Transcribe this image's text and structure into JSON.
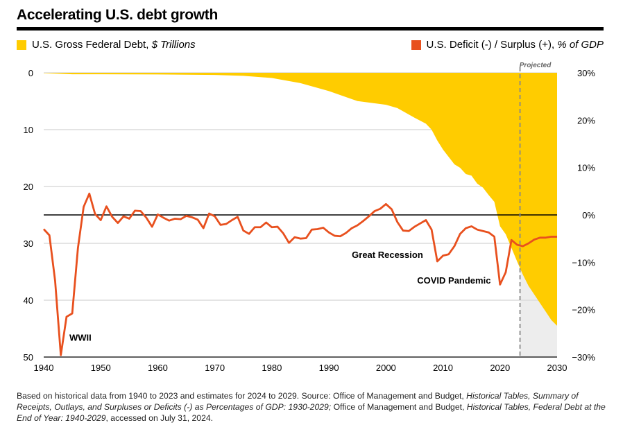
{
  "header": {
    "title": "Accelerating U.S. debt growth"
  },
  "legend": {
    "debt_label": "U.S. Gross Federal Debt,",
    "debt_unit": "$ Trillions",
    "deficit_label": "U.S. Deficit (-) / Surplus (+),",
    "deficit_unit": "% of GDP"
  },
  "colors": {
    "debt": "#FFCC00",
    "deficit": "#E8501E",
    "projected_fill": "#EDEDED",
    "grid": "#C8C8C8"
  },
  "footnote": {
    "part1": "Based on historical data from 1940 to 2023 and estimates for 2024 to 2029. Source: Office of Management and Budget, ",
    "italic1": "Historical Tables, Summary of Receipts, Outlays, and Surpluses or Deficits (-) as Percentages of GDP: 1930-2029;",
    "part2": " Office of Management and Budget, ",
    "italic2": "Historical Tables, Federal Debt at the End of Year: 1940-2029",
    "part3": ", accessed on July 31, 2024."
  },
  "chart_data": {
    "type": "area",
    "x_ticks": [
      "1940",
      "1950",
      "1960",
      "1970",
      "1980",
      "1990",
      "2000",
      "2010",
      "2020",
      "2030"
    ],
    "xlim": [
      1940,
      2030
    ],
    "left_axis": {
      "ticks": [
        "0",
        "10",
        "20",
        "30",
        "40",
        "50"
      ],
      "ylim": [
        0,
        50
      ],
      "inverted": true
    },
    "right_axis": {
      "ticks": [
        "30%",
        "20%",
        "10%",
        "0%",
        "-10%",
        "-20%",
        "-30%"
      ],
      "ylim": [
        -30,
        30
      ]
    },
    "projected_label": "Projected",
    "projected_start": 2023.5,
    "annotations": [
      {
        "text": "WWII",
        "x": 1944.5,
        "y": -26
      },
      {
        "text": "Great Recession",
        "x": 2006.5,
        "y": -8.5
      },
      {
        "text": "COVID Pandemic",
        "x": 2018.5,
        "y": -13.9
      }
    ],
    "series": [
      {
        "name": "U.S. Gross Federal Debt, $ Trillions",
        "axis": "left",
        "x": [
          1940,
          1945,
          1950,
          1960,
          1970,
          1975,
          1980,
          1985,
          1990,
          1995,
          2000,
          2002,
          2005,
          2007,
          2008,
          2009,
          2010,
          2011,
          2012,
          2013,
          2014,
          2015,
          2016,
          2017,
          2018,
          2019,
          2020,
          2021,
          2022,
          2023,
          2024,
          2025,
          2026,
          2027,
          2028,
          2029,
          2030
        ],
        "values": [
          0.05,
          0.26,
          0.26,
          0.29,
          0.38,
          0.54,
          0.91,
          1.82,
          3.21,
          4.97,
          5.63,
          6.2,
          7.9,
          8.95,
          10.0,
          11.9,
          13.5,
          14.8,
          16.1,
          16.7,
          17.8,
          18.1,
          19.5,
          20.2,
          21.5,
          22.7,
          27.0,
          28.4,
          30.8,
          33.2,
          35.5,
          37.5,
          39.0,
          40.5,
          42.0,
          43.5,
          44.5
        ]
      },
      {
        "name": "U.S. Deficit (-) / Surplus (+), % of GDP",
        "axis": "right",
        "x": [
          1940,
          1941,
          1942,
          1943,
          1944,
          1945,
          1946,
          1947,
          1948,
          1949,
          1950,
          1951,
          1952,
          1953,
          1954,
          1955,
          1956,
          1957,
          1958,
          1959,
          1960,
          1961,
          1962,
          1963,
          1964,
          1965,
          1966,
          1967,
          1968,
          1969,
          1970,
          1971,
          1972,
          1973,
          1974,
          1975,
          1976,
          1977,
          1978,
          1979,
          1980,
          1981,
          1982,
          1983,
          1984,
          1985,
          1986,
          1987,
          1988,
          1989,
          1990,
          1991,
          1992,
          1993,
          1994,
          1995,
          1996,
          1997,
          1998,
          1999,
          2000,
          2001,
          2002,
          2003,
          2004,
          2005,
          2006,
          2007,
          2008,
          2009,
          2010,
          2011,
          2012,
          2013,
          2014,
          2015,
          2016,
          2017,
          2018,
          2019,
          2020,
          2021,
          2022,
          2023,
          2024,
          2025,
          2026,
          2027,
          2028,
          2029,
          2030
        ],
        "values": [
          -3.0,
          -4.3,
          -13.9,
          -29.6,
          -21.5,
          -20.8,
          -7.0,
          1.7,
          4.5,
          0.2,
          -1.1,
          1.8,
          -0.4,
          -1.7,
          -0.3,
          -0.8,
          0.9,
          0.8,
          -0.6,
          -2.5,
          0.1,
          -0.6,
          -1.2,
          -0.8,
          -0.9,
          -0.2,
          -0.5,
          -1.0,
          -2.8,
          0.3,
          -0.3,
          -2.1,
          -1.9,
          -1.1,
          -0.4,
          -3.3,
          -4.0,
          -2.6,
          -2.6,
          -1.6,
          -2.6,
          -2.5,
          -3.9,
          -5.9,
          -4.7,
          -5.0,
          -4.9,
          -3.1,
          -3.0,
          -2.7,
          -3.7,
          -4.4,
          -4.5,
          -3.8,
          -2.8,
          -2.2,
          -1.3,
          -0.3,
          0.8,
          1.3,
          2.3,
          1.2,
          -1.5,
          -3.3,
          -3.4,
          -2.5,
          -1.8,
          -1.1,
          -3.1,
          -9.8,
          -8.6,
          -8.3,
          -6.6,
          -4.0,
          -2.8,
          -2.4,
          -3.1,
          -3.4,
          -3.7,
          -4.6,
          -14.7,
          -12.1,
          -5.3,
          -6.3,
          -6.6,
          -6.0,
          -5.2,
          -4.8,
          -4.8,
          -4.6,
          -4.6
        ]
      }
    ]
  }
}
